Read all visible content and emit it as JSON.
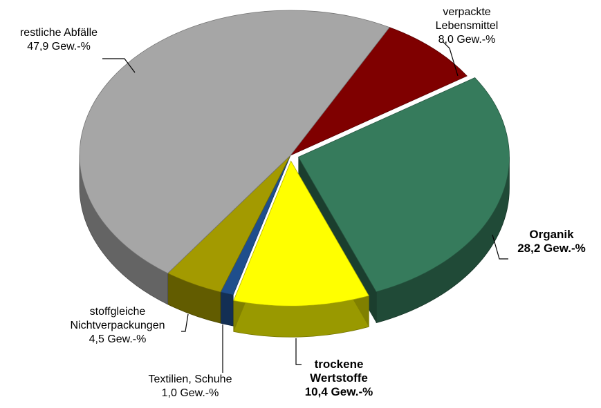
{
  "chart_data": {
    "type": "pie",
    "categories": [
      "verpackte Lebensmittel",
      "Organik",
      "trockene Wertstoffe",
      "Textilien, Schuhe",
      "stoffgleiche Nichtverpackungen",
      "restliche Abfälle"
    ],
    "values": [
      8.0,
      28.2,
      10.4,
      1.0,
      4.5,
      47.9
    ],
    "value_labels": [
      "8,0 Gew.-%",
      "28,2 Gew.-%",
      "10,4 Gew.-%",
      "1,0 Gew.-%",
      "4,5 Gew.-%",
      "47,9 Gew.-%"
    ],
    "colors": [
      "#7f0000",
      "#367b5c",
      "#ffff00",
      "#1f4e8c",
      "#a39a00",
      "#a6a6a6"
    ],
    "exploded": [
      false,
      true,
      true,
      false,
      false,
      false
    ]
  }
}
